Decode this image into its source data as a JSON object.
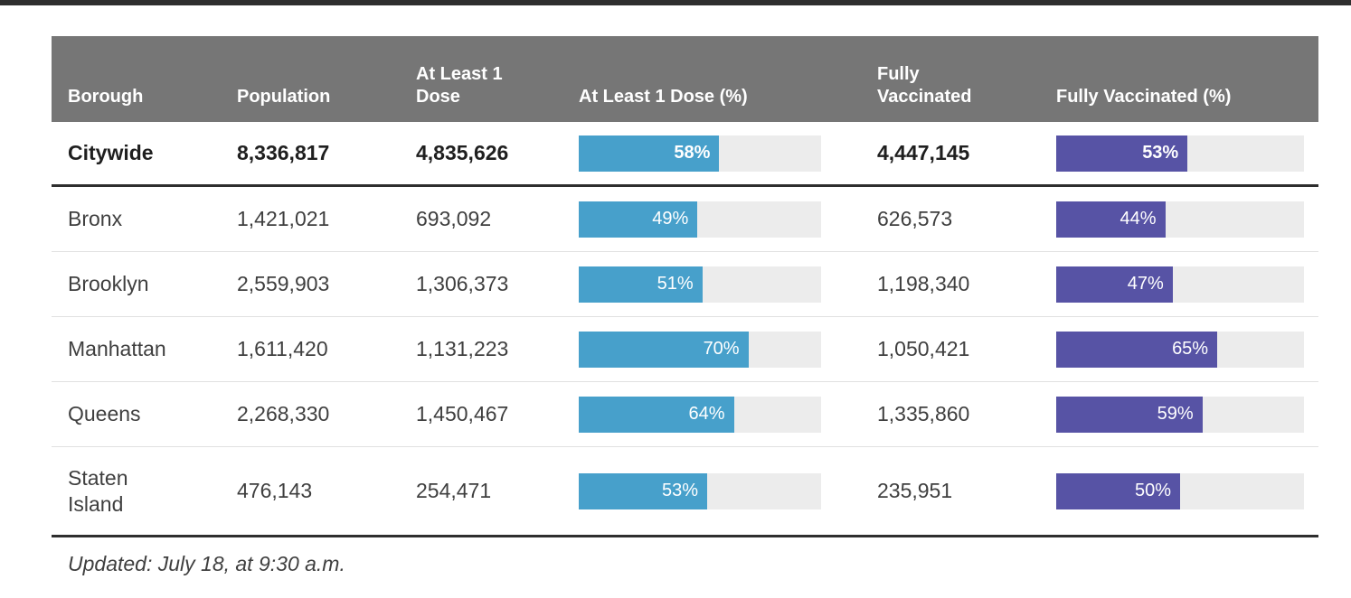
{
  "colors": {
    "header-bg": "#767676",
    "blue": "#47a0cb",
    "purple": "#5753a5",
    "track": "#ececec",
    "dark-line": "#2e2e2e",
    "light-line": "#e1e1e1",
    "body-text": "#3f3f3f",
    "strong-text": "#1f1f1f"
  },
  "header": {
    "borough": "Borough",
    "population": "Population",
    "at_least_1_dose": "At Least 1 Dose",
    "at_least_1_dose_pct": "At Least 1 Dose (%)",
    "fully_vaccinated": "Fully Vaccinated",
    "fully_vaccinated_pct": "Fully Vaccinated (%)"
  },
  "table": {
    "rows": [
      {
        "borough": "Citywide",
        "population": "8,336,817",
        "at_least_1_dose": "4,835,626",
        "dose1_pct": 58,
        "dose1_pct_label": "58%",
        "fully_vaccinated": "4,447,145",
        "fully_pct": 53,
        "fully_pct_label": "53%"
      },
      {
        "borough": "Bronx",
        "population": "1,421,021",
        "at_least_1_dose": "693,092",
        "dose1_pct": 49,
        "dose1_pct_label": "49%",
        "fully_vaccinated": "626,573",
        "fully_pct": 44,
        "fully_pct_label": "44%"
      },
      {
        "borough": "Brooklyn",
        "population": "2,559,903",
        "at_least_1_dose": "1,306,373",
        "dose1_pct": 51,
        "dose1_pct_label": "51%",
        "fully_vaccinated": "1,198,340",
        "fully_pct": 47,
        "fully_pct_label": "47%"
      },
      {
        "borough": "Manhattan",
        "population": "1,611,420",
        "at_least_1_dose": "1,131,223",
        "dose1_pct": 70,
        "dose1_pct_label": "70%",
        "fully_vaccinated": "1,050,421",
        "fully_pct": 65,
        "fully_pct_label": "65%"
      },
      {
        "borough": "Queens",
        "population": "2,268,330",
        "at_least_1_dose": "1,450,467",
        "dose1_pct": 64,
        "dose1_pct_label": "64%",
        "fully_vaccinated": "1,335,860",
        "fully_pct": 59,
        "fully_pct_label": "59%"
      },
      {
        "borough": "Staten Island",
        "population": "476,143",
        "at_least_1_dose": "254,471",
        "dose1_pct": 53,
        "dose1_pct_label": "53%",
        "fully_vaccinated": "235,951",
        "fully_pct": 50,
        "fully_pct_label": "50%"
      }
    ]
  },
  "footer": {
    "updated": "Updated: July 18, at 9:30 a.m."
  },
  "chart_data": {
    "type": "table",
    "columns": [
      "Borough",
      "Population",
      "At Least 1 Dose",
      "At Least 1 Dose (%)",
      "Fully Vaccinated",
      "Fully Vaccinated (%)"
    ],
    "rows": [
      [
        "Citywide",
        8336817,
        4835626,
        58,
        4447145,
        53
      ],
      [
        "Bronx",
        1421021,
        693092,
        49,
        626573,
        44
      ],
      [
        "Brooklyn",
        2559903,
        1306373,
        51,
        1198340,
        47
      ],
      [
        "Manhattan",
        1611420,
        1131223,
        70,
        1050421,
        65
      ],
      [
        "Queens",
        2268330,
        1450467,
        64,
        1335860,
        59
      ],
      [
        "Staten Island",
        476143,
        254471,
        53,
        235951,
        50
      ]
    ],
    "bar_columns": [
      {
        "column": "At Least 1 Dose (%)",
        "color": "#47a0cb",
        "range": [
          0,
          100
        ]
      },
      {
        "column": "Fully Vaccinated (%)",
        "color": "#5753a5",
        "range": [
          0,
          100
        ]
      }
    ],
    "annotations": [
      "Updated: July 18, at 9:30 a.m."
    ]
  }
}
